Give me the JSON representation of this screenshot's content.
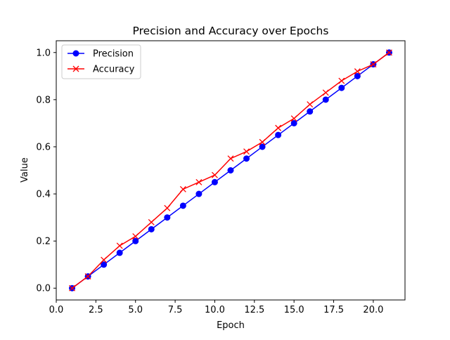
{
  "chart_data": {
    "type": "line",
    "title": "Precision and Accuracy over Epochs",
    "xlabel": "Epoch",
    "ylabel": "Value",
    "xlim": [
      0.0,
      22.0
    ],
    "ylim": [
      -0.05,
      1.05
    ],
    "xticks": [
      "0.0",
      "2.5",
      "5.0",
      "7.5",
      "10.0",
      "12.5",
      "15.0",
      "17.5",
      "20.0"
    ],
    "yticks": [
      "0.0",
      "0.2",
      "0.4",
      "0.6",
      "0.8",
      "1.0"
    ],
    "grid": false,
    "legend_position": "top-left",
    "x": [
      1,
      2,
      3,
      4,
      5,
      6,
      7,
      8,
      9,
      10,
      11,
      12,
      13,
      14,
      15,
      16,
      17,
      18,
      19,
      20,
      21
    ],
    "series": [
      {
        "name": "Precision",
        "color": "#0000ff",
        "marker": "circle",
        "values": [
          0.0,
          0.05,
          0.1,
          0.15,
          0.2,
          0.25,
          0.3,
          0.35,
          0.4,
          0.45,
          0.5,
          0.55,
          0.6,
          0.65,
          0.7,
          0.75,
          0.8,
          0.85,
          0.9,
          0.95,
          1.0
        ]
      },
      {
        "name": "Accuracy",
        "color": "#ff0000",
        "marker": "x",
        "values": [
          0.0,
          0.05,
          0.12,
          0.18,
          0.22,
          0.28,
          0.34,
          0.42,
          0.45,
          0.48,
          0.55,
          0.58,
          0.62,
          0.68,
          0.72,
          0.78,
          0.83,
          0.88,
          0.92,
          0.95,
          1.0
        ]
      }
    ]
  }
}
